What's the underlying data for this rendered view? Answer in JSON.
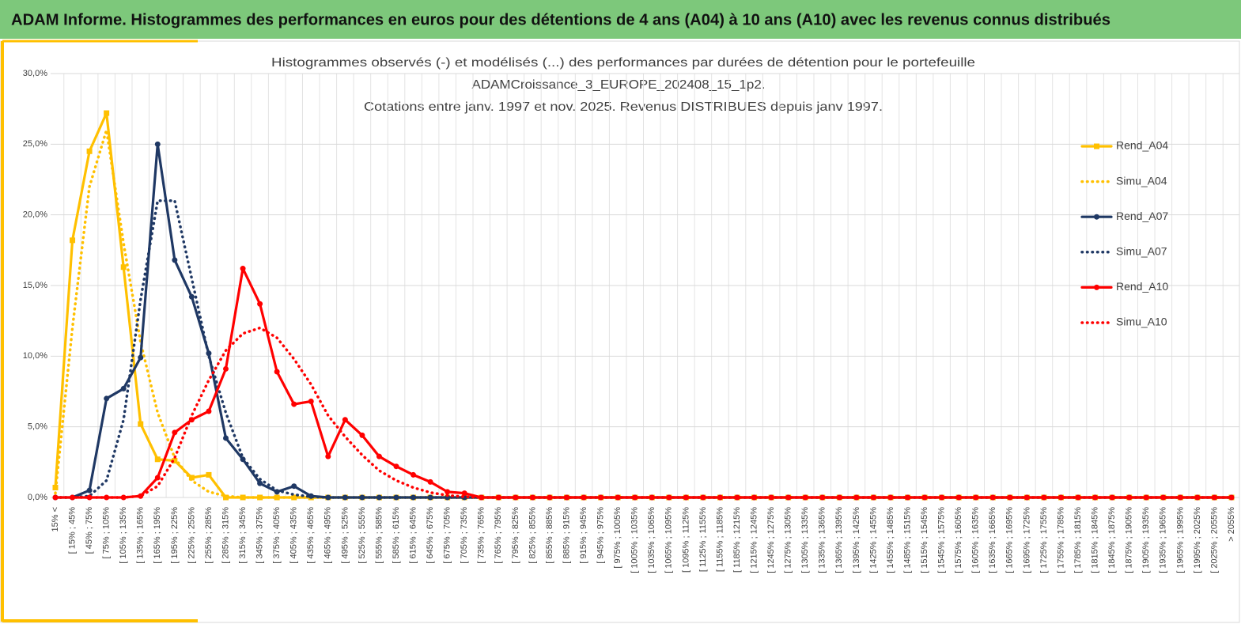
{
  "header": {
    "title": "ADAM Informe. Histogrammes des performances en euros pour des détentions de 4 ans (A04) à 10 ans (A10) avec les revenus connus distribués"
  },
  "chart_data": {
    "type": "line",
    "title": [
      "Histogrammes observés (-) et modélisés (...) des performances par durées de détention pour le portefeuille",
      "ADAMCroissance_3_EUROPE_202408_15_1p2.",
      "Cotations entre janv. 1997 et nov. 2025. Revenus DISTRIBUES depuis janv 1997."
    ],
    "categories": [
      "15% <",
      "[ 15% ; 45%",
      "[ 45% ; 75%",
      "[ 75% ; 105%",
      "[ 105% ; 135%",
      "[ 135% ; 165%",
      "[ 165% ; 195%",
      "[ 195% ; 225%",
      "[ 225% ; 255%",
      "[ 255% ; 285%",
      "[ 285% ; 315%",
      "[ 315% ; 345%",
      "[ 345% ; 375%",
      "[ 375% ; 405%",
      "[ 405% ; 435%",
      "[ 435% ; 465%",
      "[ 465% ; 495%",
      "[ 495% ; 525%",
      "[ 525% ; 555%",
      "[ 555% ; 585%",
      "[ 585% ; 615%",
      "[ 615% ; 645%",
      "[ 645% ; 675%",
      "[ 675% ; 705%",
      "[ 705% ; 735%",
      "[ 735% ; 765%",
      "[ 765% ; 795%",
      "[ 795% ; 825%",
      "[ 825% ; 855%",
      "[ 855% ; 885%",
      "[ 885% ; 915%",
      "[ 915% ; 945%",
      "[ 945% ; 975%",
      "[ 975% ; 1005%",
      "[ 1005% ; 1035%",
      "[ 1035% ; 1065%",
      "[ 1065% ; 1095%",
      "[ 1095% ; 1125%",
      "[ 1125% ; 1155%",
      "[ 1155% ; 1185%",
      "[ 1185% ; 1215%",
      "[ 1215% ; 1245%",
      "[ 1245% ; 1275%",
      "[ 1275% ; 1305%",
      "[ 1305% ; 1335%",
      "[ 1335% ; 1365%",
      "[ 1365% ; 1395%",
      "[ 1395% ; 1425%",
      "[ 1425% ; 1455%",
      "[ 1455% ; 1485%",
      "[ 1485% ; 1515%",
      "[ 1515% ; 1545%",
      "[ 1545% ; 1575%",
      "[ 1575% ; 1605%",
      "[ 1605% ; 1635%",
      "[ 1635% ; 1665%",
      "[ 1665% ; 1695%",
      "[ 1695% ; 1725%",
      "[ 1725% ; 1755%",
      "[ 1755% ; 1785%",
      "[ 1785% ; 1815%",
      "[ 1815% ; 1845%",
      "[ 1845% ; 1875%",
      "[ 1875% ; 1905%",
      "[ 1905% ; 1935%",
      "[ 1935% ; 1965%",
      "[ 1965% ; 1995%",
      "[ 1995% ; 2025%",
      "[ 2025% ; 2055%",
      "> 2055%"
    ],
    "series": [
      {
        "name": "Rend_A04",
        "color": "#ffc000",
        "line_style": "solid",
        "marker": "square",
        "values": [
          0.7,
          18.2,
          24.5,
          27.2,
          16.3,
          5.2,
          2.7,
          2.6,
          1.4,
          1.6,
          0,
          0,
          0,
          0,
          0,
          0,
          0,
          0,
          0,
          0,
          0,
          0,
          0,
          0,
          0,
          0,
          0,
          0,
          0,
          0,
          0,
          0,
          0,
          0,
          0,
          0,
          0,
          0,
          0,
          0,
          0,
          0,
          0,
          0,
          0,
          0,
          0,
          0,
          0,
          0,
          0,
          0,
          0,
          0,
          0,
          0,
          0,
          0,
          0,
          0,
          0,
          0,
          0,
          0,
          0,
          0,
          0,
          0,
          0,
          0
        ]
      },
      {
        "name": "Simu_A04",
        "color": "#ffc000",
        "line_style": "dotted",
        "marker": null,
        "values": [
          0.3,
          12,
          22,
          26,
          18,
          11,
          6,
          2.8,
          1.2,
          0.4,
          0.1,
          0,
          0,
          0,
          0,
          0,
          0,
          0,
          0,
          0,
          0,
          0,
          0,
          0,
          0,
          0,
          0,
          0,
          0,
          0,
          0,
          0,
          0,
          0,
          0,
          0,
          0,
          0,
          0,
          0,
          0,
          0,
          0,
          0,
          0,
          0,
          0,
          0,
          0,
          0,
          0,
          0,
          0,
          0,
          0,
          0,
          0,
          0,
          0,
          0,
          0,
          0,
          0,
          0,
          0,
          0,
          0,
          0,
          0,
          0
        ]
      },
      {
        "name": "Rend_A07",
        "color": "#1f3864",
        "line_style": "solid",
        "marker": "circle",
        "values": [
          0,
          0,
          0.5,
          7,
          7.7,
          9.9,
          25,
          16.8,
          14.2,
          10.2,
          4.2,
          2.7,
          1,
          0.4,
          0.8,
          0.1,
          0,
          0,
          0,
          0,
          0,
          0,
          0,
          0,
          0,
          0,
          0,
          0,
          0,
          0,
          0,
          0,
          0,
          0,
          0,
          0,
          0,
          0,
          0,
          0,
          0,
          0,
          0,
          0,
          0,
          0,
          0,
          0,
          0,
          0,
          0,
          0,
          0,
          0,
          0,
          0,
          0,
          0,
          0,
          0,
          0,
          0,
          0,
          0,
          0,
          0,
          0,
          0,
          0,
          0
        ]
      },
      {
        "name": "Simu_A07",
        "color": "#1f3864",
        "line_style": "dotted",
        "marker": null,
        "values": [
          0,
          0,
          0.1,
          1.2,
          5.5,
          14,
          21,
          21,
          15.5,
          10,
          6,
          2.8,
          1.3,
          0.5,
          0.2,
          0.05,
          0,
          0,
          0,
          0,
          0,
          0,
          0,
          0,
          0,
          0,
          0,
          0,
          0,
          0,
          0,
          0,
          0,
          0,
          0,
          0,
          0,
          0,
          0,
          0,
          0,
          0,
          0,
          0,
          0,
          0,
          0,
          0,
          0,
          0,
          0,
          0,
          0,
          0,
          0,
          0,
          0,
          0,
          0,
          0,
          0,
          0,
          0,
          0,
          0,
          0,
          0,
          0,
          0,
          0
        ]
      },
      {
        "name": "Rend_A10",
        "color": "#ff0000",
        "line_style": "solid",
        "marker": "circle",
        "values": [
          0,
          0,
          0,
          0,
          0,
          0.1,
          1.4,
          4.6,
          5.5,
          6.1,
          9.1,
          16.2,
          13.7,
          8.9,
          6.6,
          6.8,
          2.9,
          5.5,
          4.4,
          2.9,
          2.2,
          1.6,
          1.1,
          0.4,
          0.3,
          0,
          0,
          0,
          0,
          0,
          0,
          0,
          0,
          0,
          0,
          0,
          0,
          0,
          0,
          0,
          0,
          0,
          0,
          0,
          0,
          0,
          0,
          0,
          0,
          0,
          0,
          0,
          0,
          0,
          0,
          0,
          0,
          0,
          0,
          0,
          0,
          0,
          0,
          0,
          0,
          0,
          0,
          0,
          0,
          0
        ]
      },
      {
        "name": "Simu_A10",
        "color": "#ff0000",
        "line_style": "dotted",
        "marker": null,
        "values": [
          0,
          0,
          0,
          0,
          0,
          0.1,
          0.8,
          2.8,
          5.8,
          8.3,
          10.4,
          11.6,
          12,
          11.3,
          9.8,
          8,
          5.8,
          4.3,
          3,
          1.9,
          1.2,
          0.7,
          0.35,
          0.15,
          0.05,
          0,
          0,
          0,
          0,
          0,
          0,
          0,
          0,
          0,
          0,
          0,
          0,
          0,
          0,
          0,
          0,
          0,
          0,
          0,
          0,
          0,
          0,
          0,
          0,
          0,
          0,
          0,
          0,
          0,
          0,
          0,
          0,
          0,
          0,
          0,
          0,
          0,
          0,
          0,
          0,
          0,
          0,
          0,
          0,
          0
        ]
      }
    ],
    "ylim": [
      0,
      30
    ],
    "yticks": [
      {
        "value": 0,
        "label": "0,0%"
      },
      {
        "value": 5,
        "label": "5,0%"
      },
      {
        "value": 10,
        "label": "10,0%"
      },
      {
        "value": 15,
        "label": "15,0%"
      },
      {
        "value": 20,
        "label": "20,0%"
      },
      {
        "value": 25,
        "label": "25,0%"
      },
      {
        "value": 30,
        "label": "30,0%"
      }
    ],
    "grid": true,
    "legend": "right"
  }
}
